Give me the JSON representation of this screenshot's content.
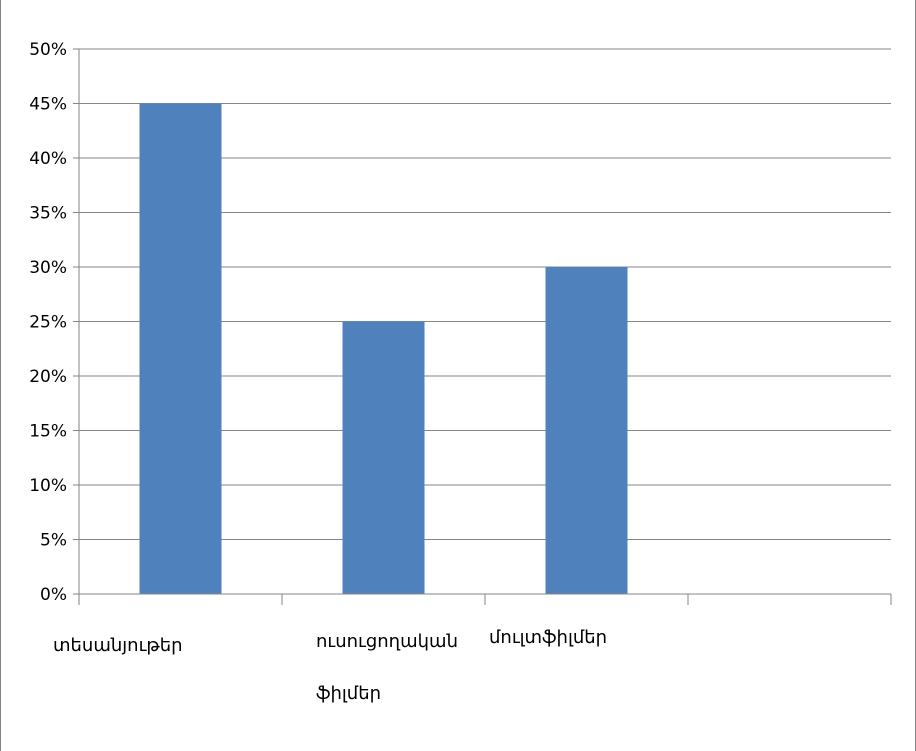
{
  "chart_data": {
    "type": "bar",
    "categories": [
      "տեսանյութեր",
      "ուսուցողական ֆիլմեր",
      "մուլտֆիլմեր",
      ""
    ],
    "values": [
      45,
      25,
      30,
      null
    ],
    "ylim": [
      0,
      50
    ],
    "yticks": [
      0,
      5,
      10,
      15,
      20,
      25,
      30,
      35,
      40,
      45,
      50
    ],
    "ytick_format": "{v}%",
    "grid": true,
    "legend": "none",
    "bar_color": "#4F81BD",
    "grid_color": "#868686"
  }
}
